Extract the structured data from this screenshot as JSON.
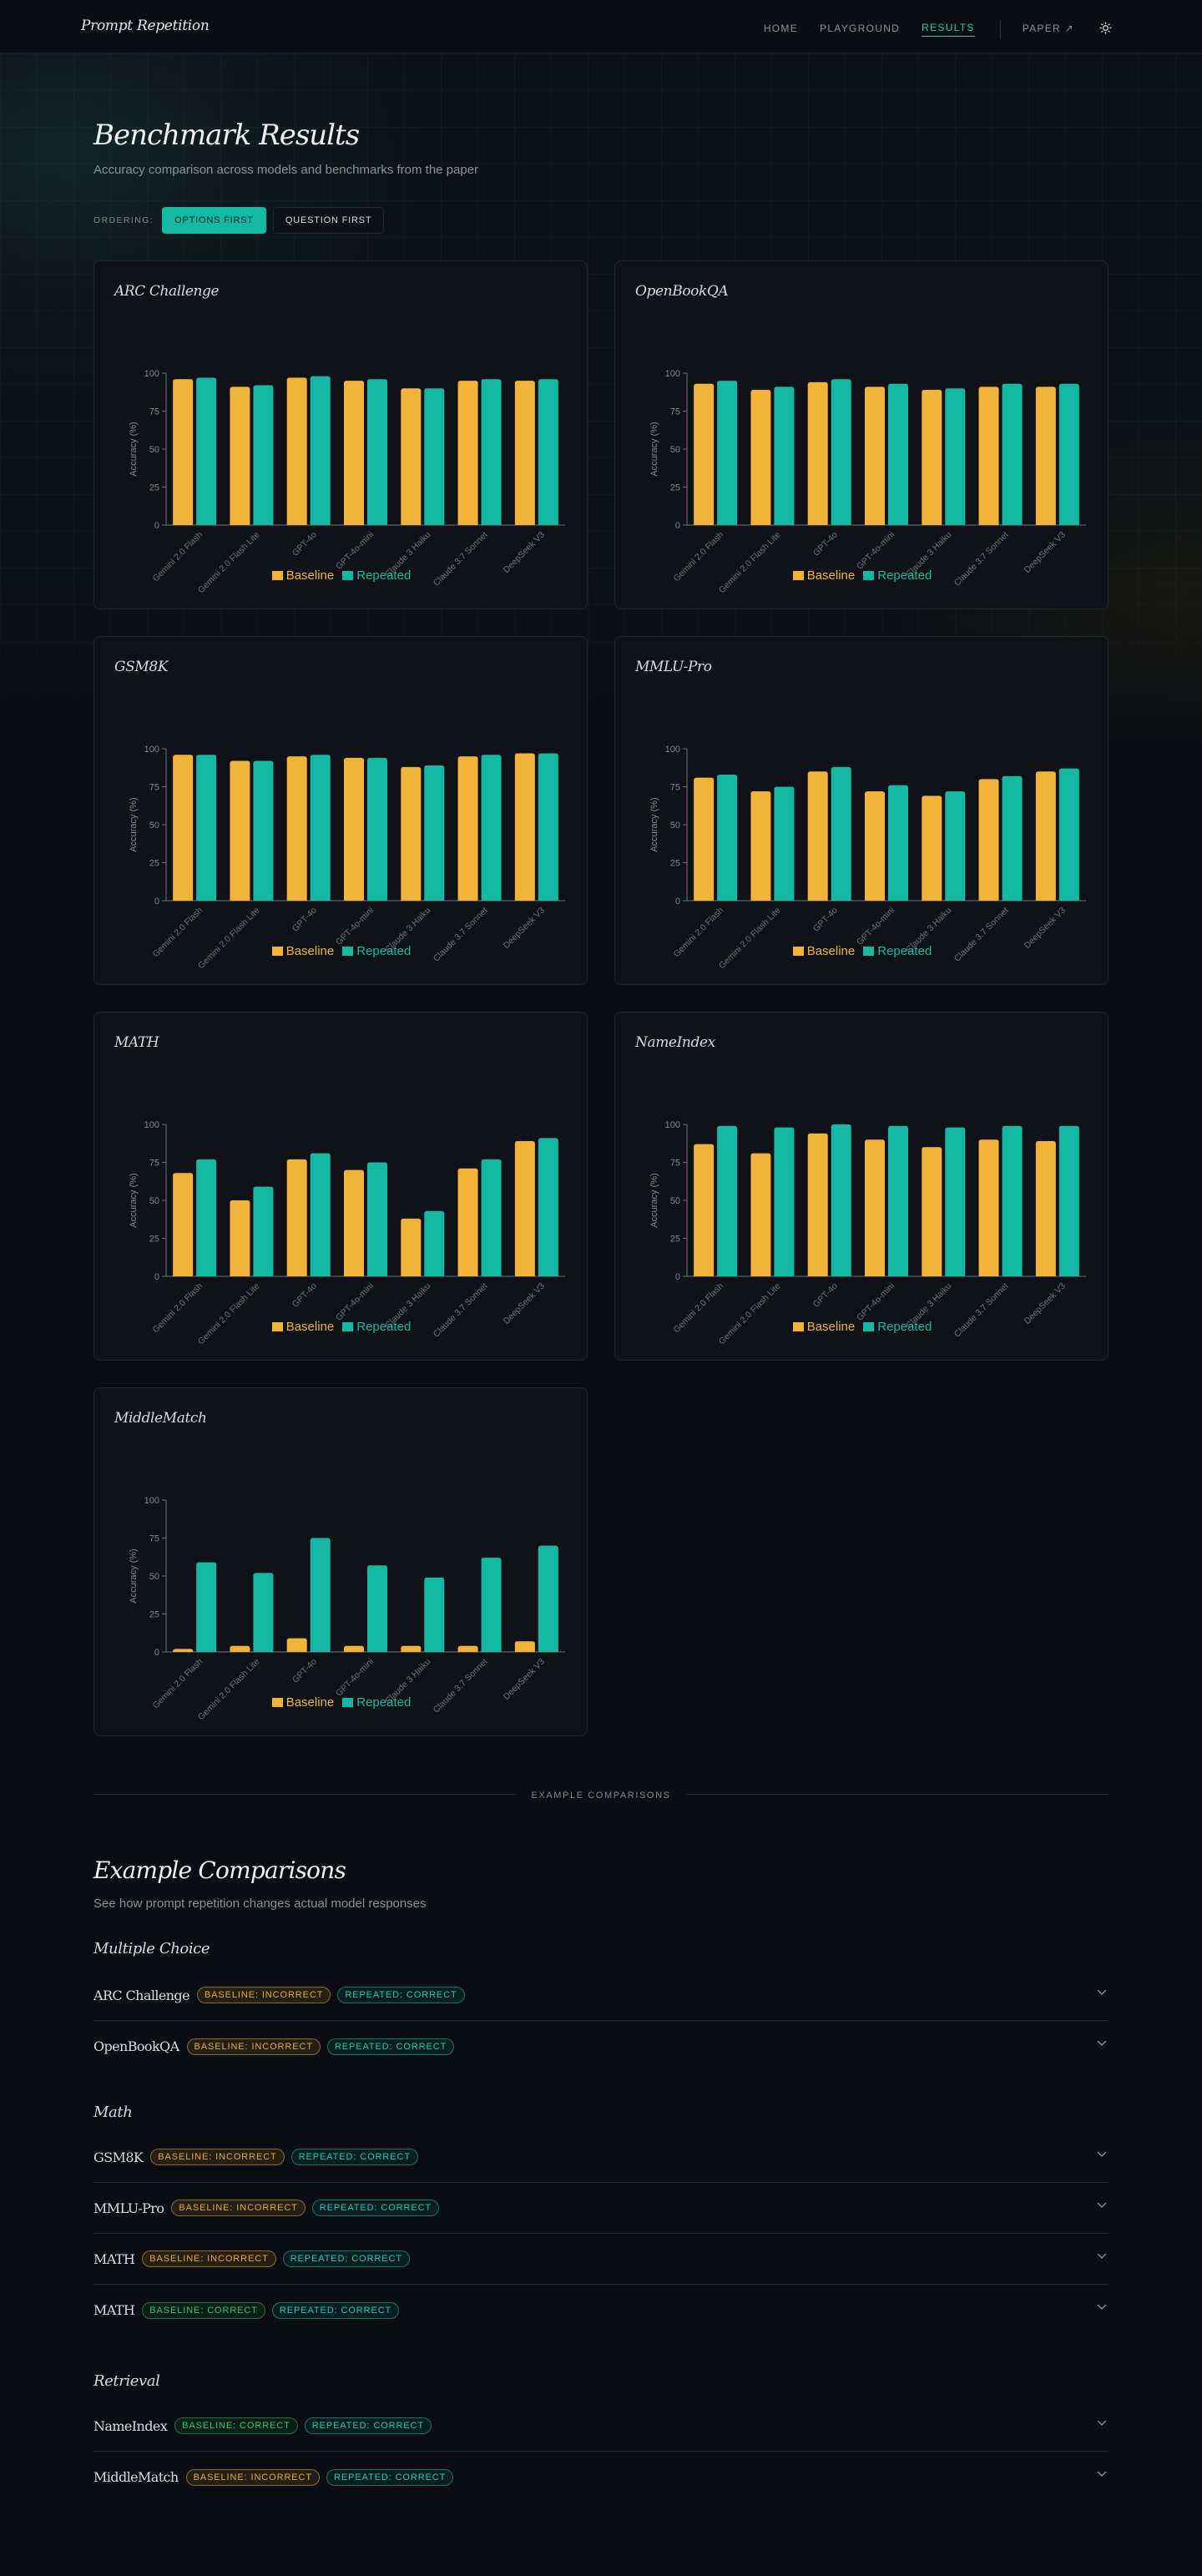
{
  "header": {
    "logo": "Prompt Repetition",
    "nav": [
      "HOME",
      "PLAYGROUND",
      "RESULTS"
    ],
    "paper": "PAPER ↗",
    "theme_icon": "sun-icon"
  },
  "results": {
    "title": "Benchmark Results",
    "subtitle": "Accuracy comparison across models and benchmarks from the paper",
    "ordering_label": "ORDERING:",
    "options": [
      "OPTIONS FIRST",
      "QUESTION FIRST"
    ],
    "selected_option": "OPTIONS FIRST"
  },
  "colors": {
    "baseline": "#f2b338",
    "repeated": "#14b8a3"
  },
  "chart_data": [
    {
      "type": "bar",
      "title": "ARC Challenge",
      "ylabel": "Accuracy (%)",
      "ylim": [
        0,
        100
      ],
      "yticks": [
        0,
        25,
        50,
        75,
        100
      ],
      "categories": [
        "Gemini 2.0 Flash",
        "Gemini 2.0 Flash Lite",
        "GPT-4o",
        "GPT-4o-mini",
        "Claude 3 Haiku",
        "Claude 3.7 Sonnet",
        "DeepSeek V3"
      ],
      "series": [
        {
          "name": "Baseline",
          "values": [
            96,
            91,
            97,
            95,
            90,
            95,
            95
          ]
        },
        {
          "name": "Repeated",
          "values": [
            97,
            92,
            98,
            96,
            90,
            96,
            96
          ]
        }
      ]
    },
    {
      "type": "bar",
      "title": "OpenBookQA",
      "ylabel": "Accuracy (%)",
      "ylim": [
        0,
        100
      ],
      "yticks": [
        0,
        25,
        50,
        75,
        100
      ],
      "categories": [
        "Gemini 2.0 Flash",
        "Gemini 2.0 Flash Lite",
        "GPT-4o",
        "GPT-4o-mini",
        "Claude 3 Haiku",
        "Claude 3.7 Sonnet",
        "DeepSeek V3"
      ],
      "series": [
        {
          "name": "Baseline",
          "values": [
            93,
            89,
            94,
            91,
            89,
            91,
            91
          ]
        },
        {
          "name": "Repeated",
          "values": [
            95,
            91,
            96,
            93,
            90,
            93,
            93
          ]
        }
      ]
    },
    {
      "type": "bar",
      "title": "GSM8K",
      "ylabel": "Accuracy (%)",
      "ylim": [
        0,
        100
      ],
      "yticks": [
        0,
        25,
        50,
        75,
        100
      ],
      "categories": [
        "Gemini 2.0 Flash",
        "Gemini 2.0 Flash Lite",
        "GPT-4o",
        "GPT-4o-mini",
        "Claude 3 Haiku",
        "Claude 3.7 Sonnet",
        "DeepSeek V3"
      ],
      "series": [
        {
          "name": "Baseline",
          "values": [
            96,
            92,
            95,
            94,
            88,
            95,
            97
          ]
        },
        {
          "name": "Repeated",
          "values": [
            96,
            92,
            96,
            94,
            89,
            96,
            97
          ]
        }
      ]
    },
    {
      "type": "bar",
      "title": "MMLU-Pro",
      "ylabel": "Accuracy (%)",
      "ylim": [
        0,
        100
      ],
      "yticks": [
        0,
        25,
        50,
        75,
        100
      ],
      "categories": [
        "Gemini 2.0 Flash",
        "Gemini 2.0 Flash Lite",
        "GPT-4o",
        "GPT-4o-mini",
        "Claude 3 Haiku",
        "Claude 3.7 Sonnet",
        "DeepSeek V3"
      ],
      "series": [
        {
          "name": "Baseline",
          "values": [
            81,
            72,
            85,
            72,
            69,
            80,
            85
          ]
        },
        {
          "name": "Repeated",
          "values": [
            83,
            75,
            88,
            76,
            72,
            82,
            87
          ]
        }
      ]
    },
    {
      "type": "bar",
      "title": "MATH",
      "ylabel": "Accuracy (%)",
      "ylim": [
        0,
        100
      ],
      "yticks": [
        0,
        25,
        50,
        75,
        100
      ],
      "categories": [
        "Gemini 2.0 Flash",
        "Gemini 2.0 Flash Lite",
        "GPT-4o",
        "GPT-4o-mini",
        "Claude 3 Haiku",
        "Claude 3.7 Sonnet",
        "DeepSeek V3"
      ],
      "series": [
        {
          "name": "Baseline",
          "values": [
            68,
            50,
            77,
            70,
            38,
            71,
            89
          ]
        },
        {
          "name": "Repeated",
          "values": [
            77,
            59,
            81,
            75,
            43,
            77,
            91
          ]
        }
      ]
    },
    {
      "type": "bar",
      "title": "NameIndex",
      "ylabel": "Accuracy (%)",
      "ylim": [
        0,
        100
      ],
      "yticks": [
        0,
        25,
        50,
        75,
        100
      ],
      "categories": [
        "Gemini 2.0 Flash",
        "Gemini 2.0 Flash Lite",
        "GPT-4o",
        "GPT-4o-mini",
        "Claude 3 Haiku",
        "Claude 3.7 Sonnet",
        "DeepSeek V3"
      ],
      "series": [
        {
          "name": "Baseline",
          "values": [
            87,
            81,
            94,
            90,
            85,
            90,
            89
          ]
        },
        {
          "name": "Repeated",
          "values": [
            99,
            98,
            100,
            99,
            98,
            99,
            99
          ]
        }
      ]
    },
    {
      "type": "bar",
      "title": "MiddleMatch",
      "ylabel": "Accuracy (%)",
      "ylim": [
        0,
        100
      ],
      "yticks": [
        0,
        25,
        50,
        75,
        100
      ],
      "categories": [
        "Gemini 2.0 Flash",
        "Gemini 2.0 Flash Lite",
        "GPT-4o",
        "GPT-4o-mini",
        "Claude 3 Haiku",
        "Claude 3.7 Sonnet",
        "DeepSeek V3"
      ],
      "series": [
        {
          "name": "Baseline",
          "values": [
            2,
            4,
            9,
            4,
            4,
            4,
            7
          ]
        },
        {
          "name": "Repeated",
          "values": [
            59,
            52,
            75,
            57,
            49,
            62,
            70
          ]
        }
      ]
    }
  ],
  "examples": {
    "divider": "EXAMPLE COMPARISONS",
    "title": "Example Comparisons",
    "subtitle": "See how prompt repetition changes actual model responses",
    "groups": [
      {
        "label": "Multiple Choice",
        "items": [
          {
            "name": "ARC Challenge",
            "baseline": "BASELINE: INCORRECT",
            "baseline_ok": false,
            "repeated": "REPEATED: CORRECT"
          },
          {
            "name": "OpenBookQA",
            "baseline": "BASELINE: INCORRECT",
            "baseline_ok": false,
            "repeated": "REPEATED: CORRECT"
          }
        ]
      },
      {
        "label": "Math",
        "items": [
          {
            "name": "GSM8K",
            "baseline": "BASELINE: INCORRECT",
            "baseline_ok": false,
            "repeated": "REPEATED: CORRECT"
          },
          {
            "name": "MMLU-Pro",
            "baseline": "BASELINE: INCORRECT",
            "baseline_ok": false,
            "repeated": "REPEATED: CORRECT"
          },
          {
            "name": "MATH",
            "baseline": "BASELINE: INCORRECT",
            "baseline_ok": false,
            "repeated": "REPEATED: CORRECT"
          },
          {
            "name": "MATH",
            "baseline": "BASELINE: CORRECT",
            "baseline_ok": true,
            "repeated": "REPEATED: CORRECT"
          }
        ]
      },
      {
        "label": "Retrieval",
        "items": [
          {
            "name": "NameIndex",
            "baseline": "BASELINE: CORRECT",
            "baseline_ok": true,
            "repeated": "REPEATED: CORRECT"
          },
          {
            "name": "MiddleMatch",
            "baseline": "BASELINE: INCORRECT",
            "baseline_ok": false,
            "repeated": "REPEATED: CORRECT"
          }
        ]
      }
    ],
    "chevron_icon": "chevron-down-icon"
  }
}
